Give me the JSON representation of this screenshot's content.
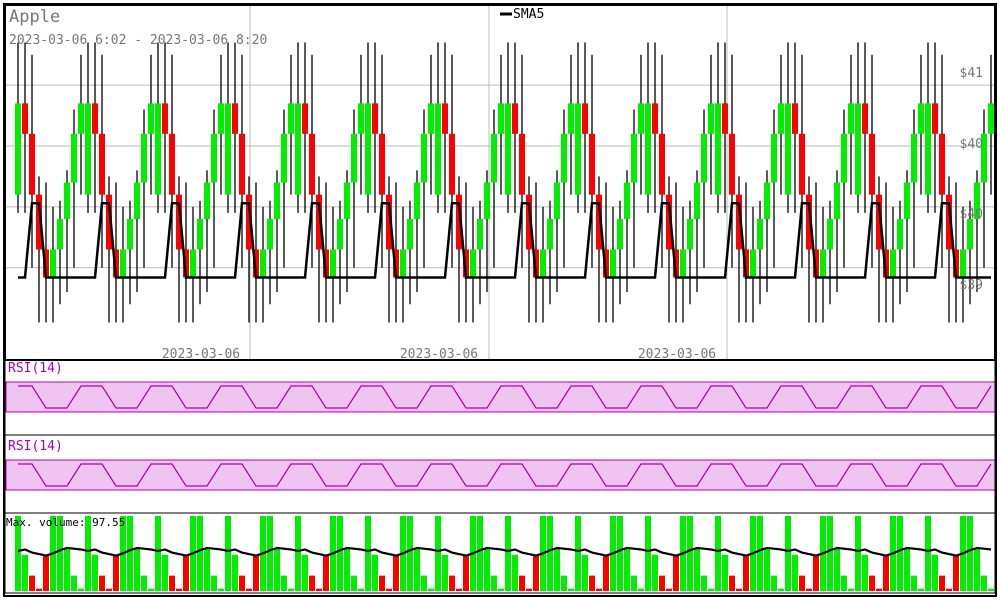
{
  "chart_data": {
    "type": "candlestick",
    "title": "Apple",
    "subtitle": "2023-03-06 6:02 - 2023-03-06 8:20",
    "legend": [
      {
        "name": "SMA5",
        "color": "#000000"
      }
    ],
    "legend_position": "top-center",
    "colors": {
      "up": "#00ee00",
      "down": "#ff0000",
      "wick": "#000000",
      "grid": "#bbbbbb",
      "rsi_band": "#f0c4f0",
      "rsi_line": "#b000b0",
      "axis_text": "#777777"
    },
    "price_axis": {
      "tick_labels": [
        "$41",
        "$40",
        "$40",
        "$39"
      ],
      "tick_values": [
        40.95,
        40.45,
        39.95,
        39.45
      ],
      "ylim": [
        38.7,
        41.6
      ]
    },
    "time_axis": {
      "tick_labels": [
        "2023-03-06",
        "2023-03-06",
        "2023-03-06"
      ]
    },
    "cycle_length": 10,
    "cycles": 14,
    "candles_cycle": [
      {
        "o": 40.05,
        "c": 40.8,
        "h": 41.3,
        "l": 39.9,
        "dir": "up"
      },
      {
        "o": 40.8,
        "c": 40.55,
        "h": 41.3,
        "l": 39.9,
        "dir": "down"
      },
      {
        "o": 40.55,
        "c": 40.05,
        "h": 41.2,
        "l": 39.45,
        "dir": "down"
      },
      {
        "o": 40.05,
        "c": 39.6,
        "h": 40.2,
        "l": 39.0,
        "dir": "down"
      },
      {
        "o": 39.6,
        "c": 39.37,
        "h": 40.15,
        "l": 39.0,
        "dir": "down"
      },
      {
        "o": 39.37,
        "c": 39.6,
        "h": 39.95,
        "l": 39.0,
        "dir": "up"
      },
      {
        "o": 39.6,
        "c": 39.85,
        "h": 40.0,
        "l": 39.15,
        "dir": "up"
      },
      {
        "o": 39.85,
        "c": 40.15,
        "h": 40.25,
        "l": 39.25,
        "dir": "up"
      },
      {
        "o": 40.15,
        "c": 40.55,
        "h": 40.75,
        "l": 39.45,
        "dir": "up"
      },
      {
        "o": 40.55,
        "c": 40.8,
        "h": 41.2,
        "l": 40.05,
        "dir": "up"
      }
    ],
    "sma5_cycle": [
      39.37,
      39.37,
      39.98,
      39.98,
      39.37,
      39.37,
      39.37,
      39.37,
      39.37,
      39.37
    ],
    "rsi_panels": [
      {
        "label": "RSI(14)",
        "values_cycle": [
          72,
          72,
          72,
          50,
          28,
          28,
          28,
          28,
          50,
          72
        ]
      },
      {
        "label": "RSI(14)",
        "values_cycle": [
          72,
          72,
          72,
          50,
          28,
          28,
          28,
          28,
          50,
          72
        ]
      }
    ],
    "volume": {
      "label": "Max. volume: 97.55",
      "max": 97.55,
      "values_cycle": [
        97.55,
        47,
        20,
        3,
        47,
        97.55,
        97.55,
        55,
        20,
        3
      ],
      "dir_cycle": [
        "up",
        "up",
        "down",
        "down",
        "down",
        "up",
        "up",
        "up",
        "up",
        "up"
      ],
      "ma_cycle": [
        52,
        54,
        50,
        48,
        46,
        49,
        53,
        56,
        55,
        54
      ]
    }
  }
}
